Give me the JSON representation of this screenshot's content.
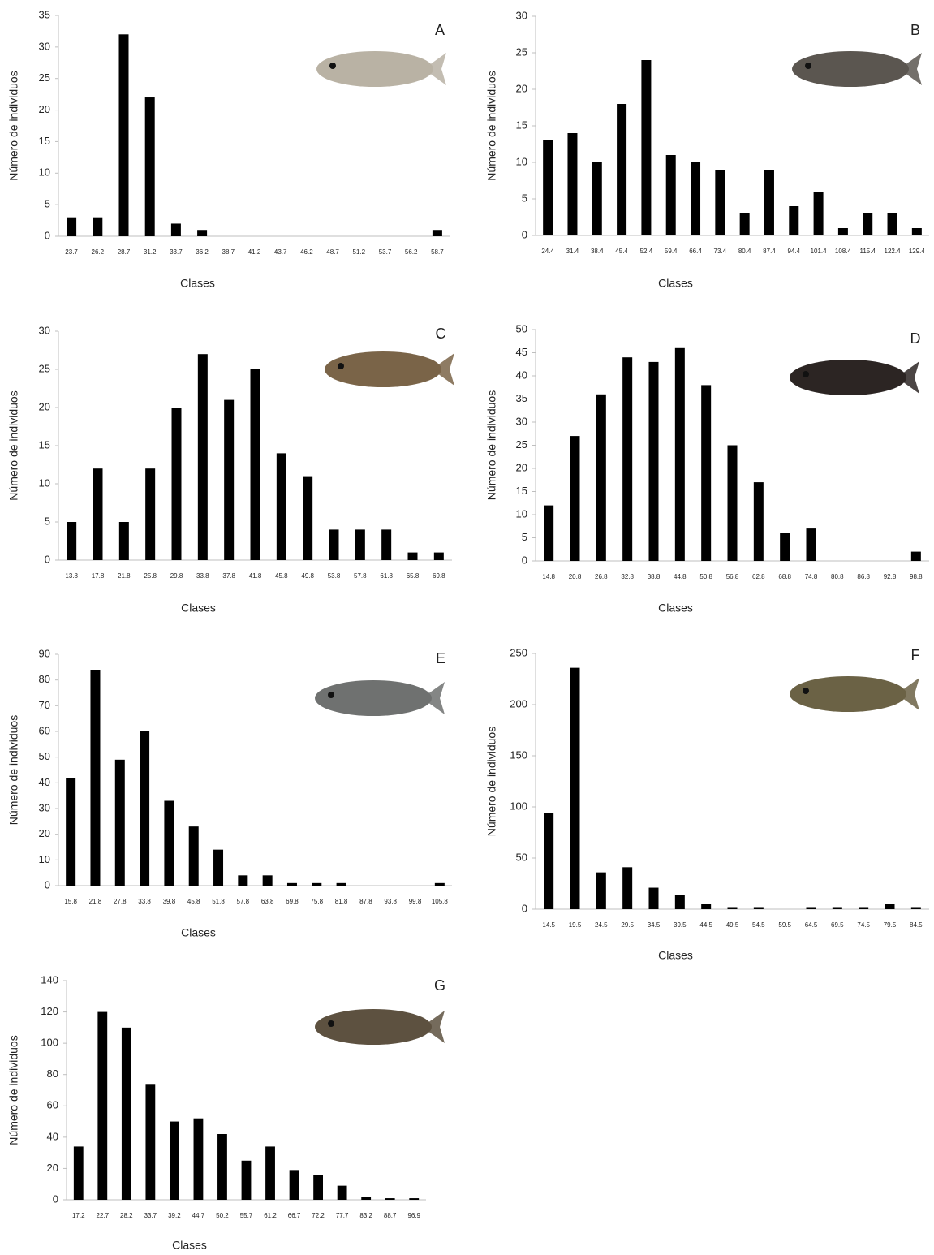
{
  "chart_data": [
    {
      "type": "bar",
      "title": "A",
      "x_label": "Clases",
      "y_label": "Número de individuos",
      "color": "#000000",
      "categories": [
        "23.7",
        "26.2",
        "28.7",
        "31.2",
        "33.7",
        "36.2",
        "38.7",
        "41.2",
        "43.7",
        "46.2",
        "48.7",
        "51.2",
        "53.7",
        "56.2",
        "58.7"
      ],
      "values": [
        3,
        3,
        32,
        22,
        2,
        1,
        0,
        0,
        0,
        0,
        0,
        0,
        0,
        0,
        1
      ],
      "ylim": [
        0,
        35
      ],
      "yticks": [
        0,
        5,
        10,
        15,
        20,
        25,
        30,
        35
      ]
    },
    {
      "type": "bar",
      "title": "B",
      "x_label": "Clases",
      "y_label": "Número de individuos",
      "color": "#000000",
      "categories": [
        "24.4",
        "31.4",
        "38.4",
        "45.4",
        "52.4",
        "59.4",
        "66.4",
        "73.4",
        "80.4",
        "87.4",
        "94.4",
        "101.4",
        "108.4",
        "115.4",
        "122.4",
        "129.4"
      ],
      "values": [
        13,
        14,
        10,
        18,
        24,
        11,
        10,
        9,
        3,
        9,
        4,
        6,
        1,
        3,
        3,
        1
      ],
      "ylim": [
        0,
        30
      ],
      "yticks": [
        0,
        5,
        10,
        15,
        20,
        25,
        30
      ]
    },
    {
      "type": "bar",
      "title": "C",
      "x_label": "Clases",
      "y_label": "Número de individuos",
      "color": "#000000",
      "categories": [
        "13.8",
        "17.8",
        "21.8",
        "25.8",
        "29.8",
        "33.8",
        "37.8",
        "41.8",
        "45.8",
        "49.8",
        "53.8",
        "57.8",
        "61.8",
        "65.8",
        "69.8"
      ],
      "values": [
        5,
        12,
        5,
        12,
        20,
        27,
        21,
        25,
        14,
        11,
        4,
        4,
        4,
        1,
        1
      ],
      "ylim": [
        0,
        30
      ],
      "yticks": [
        0,
        5,
        10,
        15,
        20,
        25,
        30
      ]
    },
    {
      "type": "bar",
      "title": "D",
      "x_label": "Clases",
      "y_label": "Número de individuos",
      "color": "#000000",
      "categories": [
        "14.8",
        "20.8",
        "26.8",
        "32.8",
        "38.8",
        "44.8",
        "50.8",
        "56.8",
        "62.8",
        "68.8",
        "74.8",
        "80.8",
        "86.8",
        "92.8",
        "98.8"
      ],
      "values": [
        12,
        27,
        36,
        44,
        43,
        46,
        38,
        25,
        17,
        6,
        7,
        0,
        0,
        0,
        2
      ],
      "ylim": [
        0,
        50
      ],
      "yticks": [
        0,
        5,
        10,
        15,
        20,
        25,
        30,
        35,
        40,
        45,
        50
      ]
    },
    {
      "type": "bar",
      "title": "E",
      "x_label": "Clases",
      "y_label": "Número de individuos",
      "color": "#000000",
      "categories": [
        "15.8",
        "21.8",
        "27.8",
        "33.8",
        "39.8",
        "45.8",
        "51.8",
        "57.8",
        "63.8",
        "69.8",
        "75.8",
        "81.8",
        "87.8",
        "93.8",
        "99.8",
        "105.8"
      ],
      "values": [
        42,
        84,
        49,
        60,
        33,
        23,
        14,
        4,
        4,
        1,
        1,
        1,
        0,
        0,
        0,
        1
      ],
      "ylim": [
        0,
        90
      ],
      "yticks": [
        0,
        10,
        20,
        30,
        40,
        50,
        60,
        70,
        80,
        90
      ]
    },
    {
      "type": "bar",
      "title": "F",
      "x_label": "Clases",
      "y_label": "Número de individuos",
      "color": "#000000",
      "categories": [
        "14.5",
        "19.5",
        "24.5",
        "29.5",
        "34.5",
        "39.5",
        "44.5",
        "49.5",
        "54.5",
        "59.5",
        "64.5",
        "69.5",
        "74.5",
        "79.5",
        "84.5"
      ],
      "values": [
        94,
        236,
        36,
        41,
        21,
        14,
        5,
        2,
        2,
        0,
        2,
        2,
        2,
        5,
        2
      ],
      "ylim": [
        0,
        250
      ],
      "yticks": [
        0,
        50,
        100,
        150,
        200,
        250
      ]
    },
    {
      "type": "bar",
      "title": "G",
      "x_label": "Clases",
      "y_label": "Número de individuos",
      "color": "#000000",
      "categories": [
        "17.2",
        "22.7",
        "28.2",
        "33.7",
        "39.2",
        "44.7",
        "50.2",
        "55.7",
        "61.2",
        "66.7",
        "72.2",
        "77.7",
        "83.2",
        "88.7",
        "96.9"
      ],
      "values": [
        34,
        120,
        110,
        74,
        50,
        52,
        42,
        25,
        34,
        19,
        16,
        9,
        2,
        1,
        1
      ],
      "ylim": [
        0,
        140
      ],
      "yticks": [
        0,
        20,
        40,
        60,
        80,
        100,
        120,
        140
      ]
    }
  ]
}
